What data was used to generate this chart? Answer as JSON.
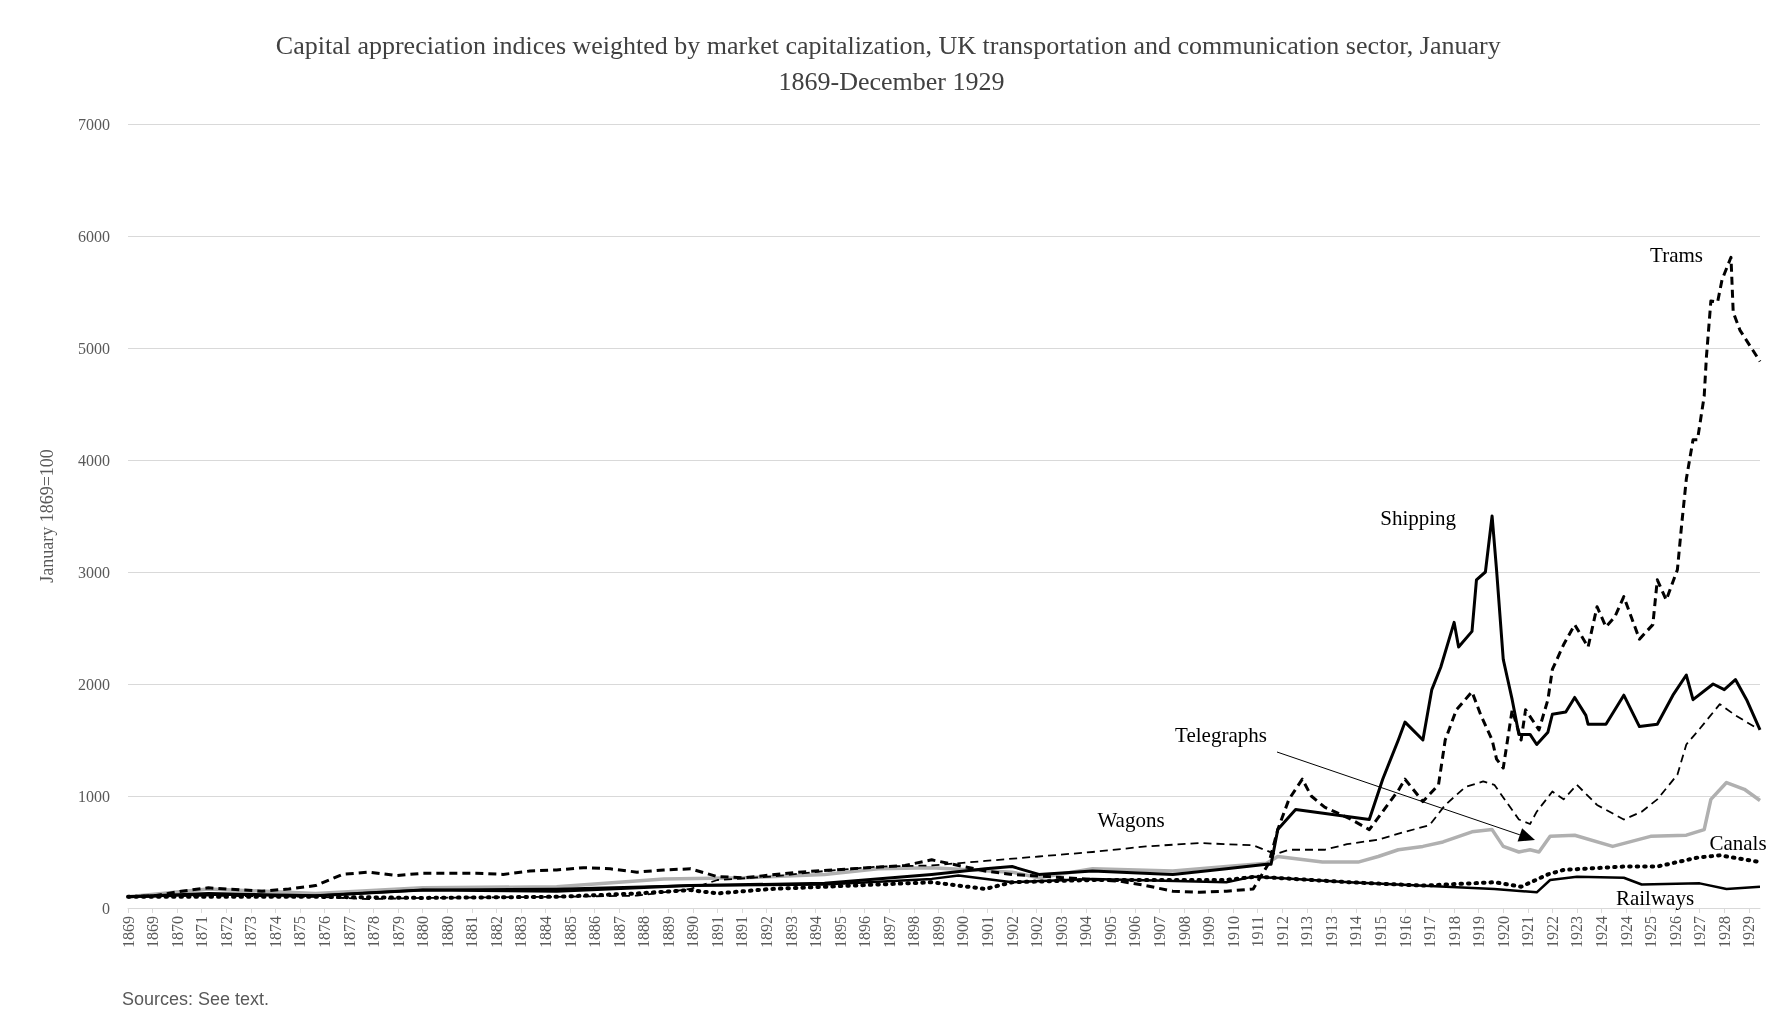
{
  "chart_data": {
    "type": "line",
    "title": "Capital appreciation indices weighted by market capitalization, UK transportation and communication sector, January 1869-December 1929",
    "ylabel": "January 1869=100",
    "annotations": [
      "Sources: See text."
    ],
    "xlim": [
      "1869-01",
      "1929-12"
    ],
    "ylim": [
      0,
      7000
    ],
    "yticks": [
      0,
      1000,
      2000,
      3000,
      4000,
      5000,
      6000,
      7000
    ],
    "xticks": [
      {
        "value": "1869-01",
        "label": "1869"
      },
      {
        "value": "1869-12",
        "label": "1869"
      },
      {
        "value": "1870-11",
        "label": "1870"
      },
      {
        "value": "1871-10",
        "label": "1871"
      },
      {
        "value": "1872-09",
        "label": "1872"
      },
      {
        "value": "1873-08",
        "label": "1873"
      },
      {
        "value": "1874-07",
        "label": "1874"
      },
      {
        "value": "1875-06",
        "label": "1875"
      },
      {
        "value": "1876-05",
        "label": "1876"
      },
      {
        "value": "1877-04",
        "label": "1877"
      },
      {
        "value": "1878-03",
        "label": "1878"
      },
      {
        "value": "1879-02",
        "label": "1879"
      },
      {
        "value": "1880-01",
        "label": "1880"
      },
      {
        "value": "1880-12",
        "label": "1880"
      },
      {
        "value": "1881-11",
        "label": "1881"
      },
      {
        "value": "1882-10",
        "label": "1882"
      },
      {
        "value": "1883-09",
        "label": "1883"
      },
      {
        "value": "1884-08",
        "label": "1884"
      },
      {
        "value": "1885-07",
        "label": "1885"
      },
      {
        "value": "1886-06",
        "label": "1886"
      },
      {
        "value": "1887-05",
        "label": "1887"
      },
      {
        "value": "1888-04",
        "label": "1888"
      },
      {
        "value": "1889-03",
        "label": "1889"
      },
      {
        "value": "1890-02",
        "label": "1890"
      },
      {
        "value": "1891-01",
        "label": "1891"
      },
      {
        "value": "1891-12",
        "label": "1891"
      },
      {
        "value": "1892-11",
        "label": "1892"
      },
      {
        "value": "1893-10",
        "label": "1893"
      },
      {
        "value": "1894-09",
        "label": "1894"
      },
      {
        "value": "1895-08",
        "label": "1895"
      },
      {
        "value": "1896-07",
        "label": "1896"
      },
      {
        "value": "1897-06",
        "label": "1897"
      },
      {
        "value": "1898-05",
        "label": "1898"
      },
      {
        "value": "1899-04",
        "label": "1899"
      },
      {
        "value": "1900-03",
        "label": "1900"
      },
      {
        "value": "1901-02",
        "label": "1901"
      },
      {
        "value": "1902-01",
        "label": "1902"
      },
      {
        "value": "1902-12",
        "label": "1902"
      },
      {
        "value": "1903-11",
        "label": "1903"
      },
      {
        "value": "1904-10",
        "label": "1904"
      },
      {
        "value": "1905-09",
        "label": "1905"
      },
      {
        "value": "1906-08",
        "label": "1906"
      },
      {
        "value": "1907-07",
        "label": "1907"
      },
      {
        "value": "1908-06",
        "label": "1908"
      },
      {
        "value": "1909-05",
        "label": "1909"
      },
      {
        "value": "1910-04",
        "label": "1910"
      },
      {
        "value": "1911-03",
        "label": "1911"
      },
      {
        "value": "1912-02",
        "label": "1912"
      },
      {
        "value": "1913-01",
        "label": "1913"
      },
      {
        "value": "1913-12",
        "label": "1913"
      },
      {
        "value": "1914-11",
        "label": "1914"
      },
      {
        "value": "1915-10",
        "label": "1915"
      },
      {
        "value": "1916-09",
        "label": "1916"
      },
      {
        "value": "1917-08",
        "label": "1917"
      },
      {
        "value": "1918-07",
        "label": "1918"
      },
      {
        "value": "1919-06",
        "label": "1919"
      },
      {
        "value": "1920-05",
        "label": "1920"
      },
      {
        "value": "1921-04",
        "label": "1921"
      },
      {
        "value": "1922-03",
        "label": "1922"
      },
      {
        "value": "1923-02",
        "label": "1923"
      },
      {
        "value": "1924-01",
        "label": "1924"
      },
      {
        "value": "1924-12",
        "label": "1924"
      },
      {
        "value": "1925-11",
        "label": "1925"
      },
      {
        "value": "1926-10",
        "label": "1926"
      },
      {
        "value": "1927-09",
        "label": "1927"
      },
      {
        "value": "1928-08",
        "label": "1928"
      },
      {
        "value": "1929-07",
        "label": "1929"
      }
    ],
    "grid": "y",
    "legend": false,
    "marker": "none",
    "series": [
      {
        "name": "Trams",
        "color": "#000000",
        "line_style": "dashed",
        "x": [
          "1869-01",
          "1870-01",
          "1871-01",
          "1872-01",
          "1874-01",
          "1875-01",
          "1876-01",
          "1877-01",
          "1878-01",
          "1879-01",
          "1880-01",
          "1882-01",
          "1883-01",
          "1884-01",
          "1885-01",
          "1886-01",
          "1887-01",
          "1888-01",
          "1889-01",
          "1890-01",
          "1891-01",
          "1892-01",
          "1894-01",
          "1896-01",
          "1898-01",
          "1899-01",
          "1900-01",
          "1901-01",
          "1902-01",
          "1904-01",
          "1906-01",
          "1907-01",
          "1908-01",
          "1909-01",
          "1910-01",
          "1911-01",
          "1911-08",
          "1911-12",
          "1912-05",
          "1912-11",
          "1913-03",
          "1913-09",
          "1914-08",
          "1915-05",
          "1915-08",
          "1916-06",
          "1916-09",
          "1917-05",
          "1917-12",
          "1918-03",
          "1918-08",
          "1919-03",
          "1919-07",
          "1919-12",
          "1920-02",
          "1920-05",
          "1920-09",
          "1921-01",
          "1921-03",
          "1921-09",
          "1922-01",
          "1922-03",
          "1922-08",
          "1923-01",
          "1923-07",
          "1923-11",
          "1924-03",
          "1924-07",
          "1924-11",
          "1925-06",
          "1925-12",
          "1926-02",
          "1926-06",
          "1926-11",
          "1927-01",
          "1927-03",
          "1927-06",
          "1927-08",
          "1927-11",
          "1927-12",
          "1928-02",
          "1928-05",
          "1928-07",
          "1928-11",
          "1928-12",
          "1929-03",
          "1929-12"
        ],
        "values": [
          100,
          110,
          150,
          180,
          150,
          170,
          200,
          300,
          320,
          290,
          310,
          310,
          300,
          330,
          340,
          360,
          350,
          320,
          340,
          350,
          280,
          270,
          320,
          350,
          380,
          430,
          380,
          330,
          300,
          270,
          240,
          200,
          150,
          140,
          150,
          170,
          400,
          700,
          970,
          1150,
          1000,
          900,
          800,
          700,
          780,
          1050,
          1150,
          950,
          1100,
          1500,
          1770,
          1930,
          1720,
          1500,
          1330,
          1250,
          1770,
          1500,
          1770,
          1590,
          1860,
          2130,
          2350,
          2530,
          2330,
          2690,
          2510,
          2600,
          2780,
          2400,
          2530,
          2930,
          2750,
          3020,
          3440,
          3830,
          4180,
          4180,
          4570,
          4920,
          5420,
          5410,
          5610,
          5810,
          5320,
          5160,
          4880
        ]
      },
      {
        "name": "Shipping",
        "color": "#000000",
        "line_style": "solid",
        "x": [
          "1869-01",
          "1872-01",
          "1876-01",
          "1880-01",
          "1885-01",
          "1890-01",
          "1895-01",
          "1899-01",
          "1901-01",
          "1902-01",
          "1903-01",
          "1905-01",
          "1908-01",
          "1910-01",
          "1911-07",
          "1911-09",
          "1911-12",
          "1912-08",
          "1915-05",
          "1915-11",
          "1916-06",
          "1916-09",
          "1917-05",
          "1917-09",
          "1918-01",
          "1918-07",
          "1918-09",
          "1919-03",
          "1919-05",
          "1919-09",
          "1919-12",
          "1920-02",
          "1920-05",
          "1920-07",
          "1920-09",
          "1920-12",
          "1921-05",
          "1921-08",
          "1922-01",
          "1922-03",
          "1922-09",
          "1923-01",
          "1923-06",
          "1923-07",
          "1924-03",
          "1924-11",
          "1925-06",
          "1926-02",
          "1926-09",
          "1927-03",
          "1927-06",
          "1928-03",
          "1928-08",
          "1929-01",
          "1929-06",
          "1929-12"
        ],
        "values": [
          100,
          130,
          110,
          160,
          150,
          200,
          220,
          300,
          350,
          370,
          300,
          330,
          300,
          350,
          390,
          390,
          700,
          880,
          790,
          1150,
          1500,
          1660,
          1500,
          1950,
          2150,
          2550,
          2330,
          2470,
          2930,
          3000,
          3500,
          3020,
          2220,
          2040,
          1860,
          1550,
          1550,
          1460,
          1570,
          1730,
          1750,
          1880,
          1720,
          1640,
          1640,
          1900,
          1620,
          1640,
          1900,
          2080,
          1860,
          2000,
          1950,
          2040,
          1860,
          1590
        ]
      },
      {
        "name": "Wagons",
        "color": "#000000",
        "line_style": "dashed",
        "x": [
          "1869-01",
          "1872-01",
          "1876-01",
          "1878-01",
          "1880-01",
          "1885-01",
          "1888-01",
          "1890-01",
          "1891-01",
          "1893-01",
          "1895-01",
          "1897-01",
          "1899-01",
          "1901-01",
          "1903-01",
          "1905-01",
          "1907-01",
          "1909-01",
          "1911-01",
          "1911-11",
          "1912-05",
          "1913-09",
          "1914-07",
          "1915-09",
          "1916-09",
          "1917-08",
          "1918-03",
          "1918-12",
          "1919-08",
          "1920-01",
          "1920-12",
          "1921-05",
          "1921-08",
          "1922-03",
          "1922-08",
          "1923-02",
          "1923-11",
          "1924-11",
          "1925-07",
          "1926-02",
          "1926-11",
          "1927-03",
          "1927-09",
          "1928-06",
          "1929-01",
          "1929-11"
        ],
        "values": [
          100,
          110,
          100,
          80,
          90,
          100,
          110,
          170,
          250,
          280,
          330,
          370,
          380,
          420,
          460,
          500,
          550,
          580,
          560,
          480,
          520,
          520,
          570,
          610,
          680,
          740,
          920,
          1080,
          1130,
          1100,
          790,
          750,
          860,
          1040,
          970,
          1100,
          920,
          790,
          860,
          970,
          1190,
          1460,
          1600,
          1820,
          1720,
          1600
        ]
      },
      {
        "name": "Telegraphs",
        "color": "#b0b0b0",
        "line_style": "solid",
        "x": [
          "1869-01",
          "1872-01",
          "1876-01",
          "1880-01",
          "1885-01",
          "1889-01",
          "1892-01",
          "1895-01",
          "1897-01",
          "1899-01",
          "1902-01",
          "1903-01",
          "1905-01",
          "1908-01",
          "1910-01",
          "1911-07",
          "1911-12",
          "1913-08",
          "1914-12",
          "1915-09",
          "1916-06",
          "1917-05",
          "1918-02",
          "1919-03",
          "1919-12",
          "1920-05",
          "1920-12",
          "1921-05",
          "1921-09",
          "1922-02",
          "1923-01",
          "1924-06",
          "1925-11",
          "1927-03",
          "1927-11",
          "1928-02",
          "1928-09",
          "1929-05",
          "1929-12"
        ],
        "values": [
          100,
          170,
          130,
          180,
          190,
          260,
          270,
          300,
          350,
          360,
          320,
          270,
          350,
          330,
          370,
          400,
          460,
          410,
          410,
          460,
          520,
          550,
          590,
          680,
          700,
          550,
          500,
          520,
          500,
          640,
          650,
          550,
          640,
          650,
          700,
          970,
          1120,
          1060,
          960
        ]
      },
      {
        "name": "Canals",
        "color": "#000000",
        "line_style": "dotted",
        "x": [
          "1869-01",
          "1876-01",
          "1880-01",
          "1885-01",
          "1888-01",
          "1890-01",
          "1891-01",
          "1893-01",
          "1896-01",
          "1899-01",
          "1901-01",
          "1902-01",
          "1905-01",
          "1910-01",
          "1911-02",
          "1914-08",
          "1917-05",
          "1920-01",
          "1921-01",
          "1922-01",
          "1922-08",
          "1924-11",
          "1926-02",
          "1927-08",
          "1928-06",
          "1929-12"
        ],
        "values": [
          100,
          100,
          90,
          100,
          130,
          160,
          130,
          170,
          200,
          230,
          170,
          230,
          250,
          250,
          280,
          230,
          200,
          230,
          190,
          300,
          340,
          370,
          370,
          450,
          470,
          410
        ]
      },
      {
        "name": "Railways",
        "color": "#000000",
        "line_style": "solid",
        "x": [
          "1869-01",
          "1872-01",
          "1876-01",
          "1880-01",
          "1885-01",
          "1890-01",
          "1895-01",
          "1899-01",
          "1900-01",
          "1902-01",
          "1905-01",
          "1910-01",
          "1911-01",
          "1914-08",
          "1920-01",
          "1921-08",
          "1922-02",
          "1923-02",
          "1924-11",
          "1925-07",
          "1927-09",
          "1928-09",
          "1929-12"
        ],
        "values": [
          100,
          120,
          110,
          160,
          170,
          200,
          210,
          260,
          290,
          230,
          260,
          230,
          280,
          230,
          170,
          140,
          250,
          280,
          270,
          210,
          220,
          170,
          190
        ]
      }
    ]
  }
}
